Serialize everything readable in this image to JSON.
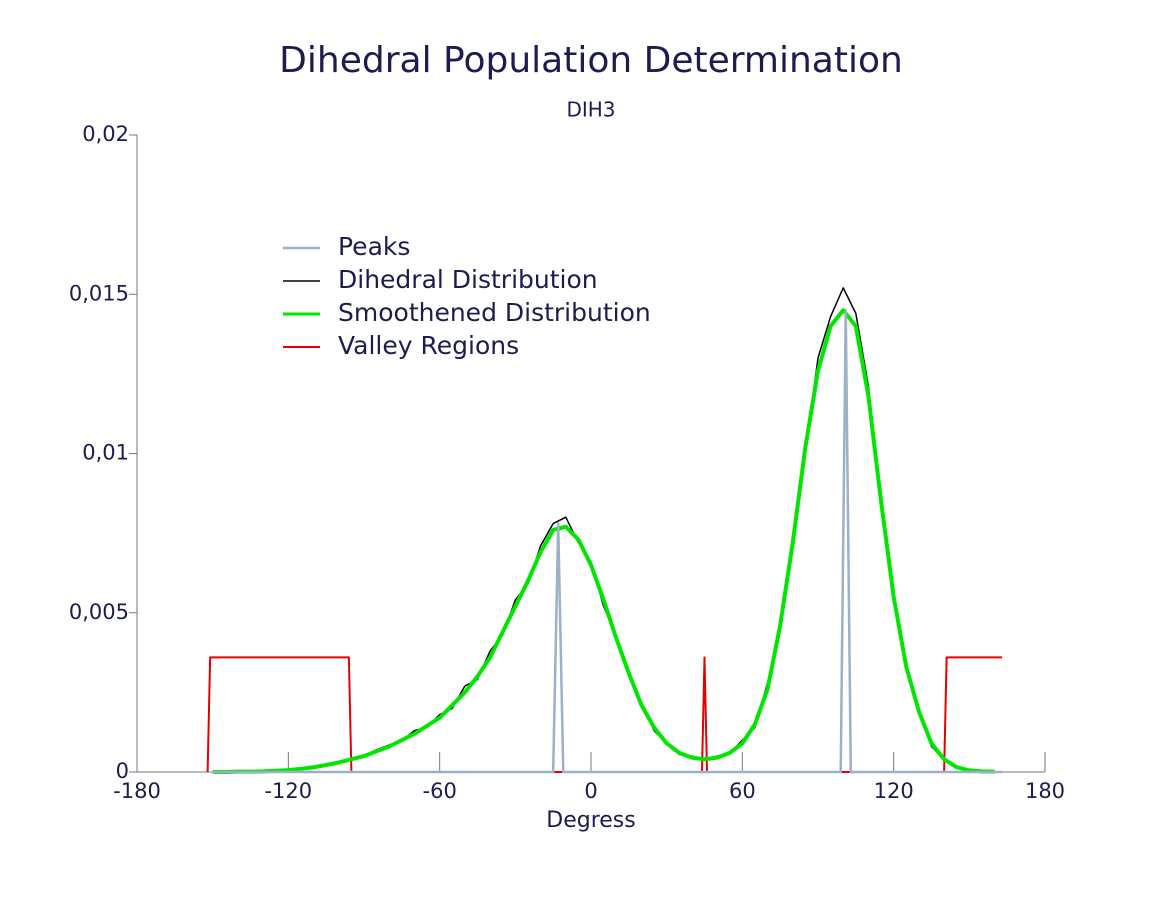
{
  "chart_data": {
    "type": "line",
    "title": "Dihedral Population Determination",
    "subtitle": "DIH3",
    "xlabel": "Degress",
    "xlim": [
      -180,
      180
    ],
    "xticks": [
      -180,
      -120,
      -60,
      0,
      60,
      120,
      180
    ],
    "ylim": [
      0,
      0.02
    ],
    "yticks": [
      0,
      {
        "value": 0.005,
        "label": "0,005"
      },
      {
        "value": 0.01,
        "label": "0,01"
      },
      {
        "value": 0.015,
        "label": "0,015"
      },
      {
        "value": 0.02,
        "label": "0,02"
      }
    ],
    "x": [
      -150,
      -145,
      -140,
      -135,
      -130,
      -125,
      -120,
      -115,
      -110,
      -105,
      -100,
      -95,
      -90,
      -85,
      -80,
      -75,
      -70,
      -65,
      -60,
      -55,
      -50,
      -45,
      -40,
      -35,
      -30,
      -25,
      -20,
      -15,
      -10,
      -5,
      0,
      5,
      10,
      15,
      20,
      25,
      30,
      35,
      40,
      45,
      50,
      55,
      60,
      65,
      70,
      75,
      80,
      85,
      90,
      95,
      100,
      105,
      110,
      115,
      120,
      125,
      130,
      135,
      140,
      145,
      150,
      155,
      160
    ],
    "series": [
      {
        "name": "Peaks",
        "color": "#9cb0c8",
        "width": 2.5,
        "x": [
          -150,
          -15,
          -13,
          -11,
          99,
          101,
          103,
          163
        ],
        "values": [
          0,
          0,
          0.0078,
          0,
          0,
          0.0145,
          0,
          0
        ]
      },
      {
        "name": "Dihedral Distribution",
        "color": "#000000",
        "width": 1.5,
        "values": [
          0,
          0,
          1e-05,
          2e-05,
          2e-05,
          5e-05,
          6e-05,
          0.00011,
          0.00014,
          0.00024,
          0.0003,
          0.00042,
          0.00048,
          0.0007,
          0.00085,
          0.00098,
          0.0013,
          0.0014,
          0.0018,
          0.002,
          0.0027,
          0.0029,
          0.0038,
          0.0043,
          0.0054,
          0.0059,
          0.0071,
          0.0078,
          0.008,
          0.0072,
          0.0066,
          0.0052,
          0.0043,
          0.003,
          0.0022,
          0.0013,
          0.0009,
          0.00055,
          0.0005,
          0.00038,
          0.0005,
          0.00058,
          0.001,
          0.0014,
          0.0028,
          0.0045,
          0.0074,
          0.01,
          0.013,
          0.0143,
          0.0152,
          0.0144,
          0.0121,
          0.0083,
          0.0056,
          0.0032,
          0.002,
          0.0008,
          0.0004,
          0.00014,
          6e-05,
          2e-05,
          1e-05
        ]
      },
      {
        "name": "Smoothened Distribution",
        "color": "#00e600",
        "width": 4,
        "values": [
          0,
          0,
          1e-05,
          1e-05,
          2e-05,
          4e-05,
          6e-05,
          0.0001,
          0.00015,
          0.00022,
          0.0003,
          0.0004,
          0.0005,
          0.00065,
          0.0008,
          0.001,
          0.0012,
          0.00145,
          0.0017,
          0.0021,
          0.0025,
          0.003,
          0.0036,
          0.0044,
          0.0052,
          0.006,
          0.0069,
          0.0076,
          0.0077,
          0.0073,
          0.0065,
          0.0054,
          0.0042,
          0.0031,
          0.0021,
          0.0014,
          0.0009,
          0.0006,
          0.00045,
          0.0004,
          0.00045,
          0.0006,
          0.0009,
          0.0015,
          0.0026,
          0.0046,
          0.0072,
          0.0102,
          0.0126,
          0.014,
          0.0145,
          0.014,
          0.0118,
          0.0085,
          0.0055,
          0.0033,
          0.0019,
          0.0009,
          0.0004,
          0.00015,
          5e-05,
          2e-05,
          1e-05
        ]
      },
      {
        "name": "Valley Regions",
        "color": "#e60000",
        "width": 2,
        "x": [
          -152,
          -151,
          -96,
          -95,
          44,
          45,
          46,
          140,
          141,
          163
        ],
        "values": [
          0,
          0.0036,
          0.0036,
          0,
          0,
          0.0036,
          0,
          0,
          0.0036,
          0.0036
        ]
      }
    ],
    "draw_order": [
      3,
      1,
      2,
      0
    ]
  }
}
